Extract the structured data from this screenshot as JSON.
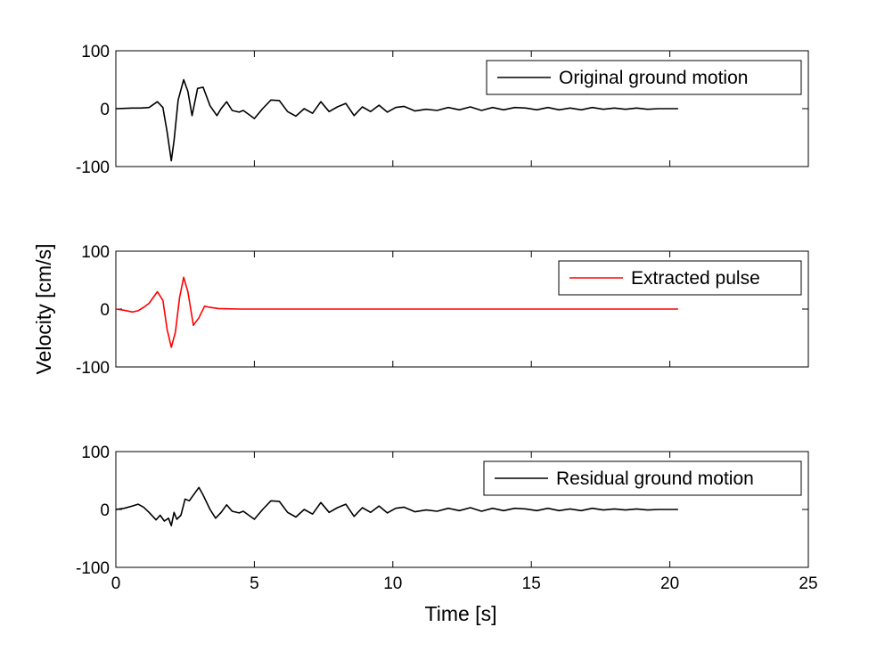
{
  "chart_data": {
    "type": "line",
    "xlabel": "Time [s]",
    "ylabel": "Velocity [cm/s]",
    "xlim": [
      0,
      25
    ],
    "xticks": [
      0,
      5,
      10,
      15,
      20,
      25
    ],
    "grid": false,
    "panels": [
      {
        "ylim": [
          -100,
          100
        ],
        "yticks": [
          -100,
          0,
          100
        ],
        "legend_position": "top-right",
        "series": [
          {
            "name": "Original ground motion",
            "color": "#000000",
            "points": [
              [
                0,
                0
              ],
              [
                0.3,
                0.5
              ],
              [
                0.6,
                1
              ],
              [
                0.9,
                1
              ],
              [
                1.2,
                2
              ],
              [
                1.5,
                12
              ],
              [
                1.7,
                2
              ],
              [
                1.85,
                -40
              ],
              [
                2.0,
                -90
              ],
              [
                2.1,
                -55
              ],
              [
                2.25,
                15
              ],
              [
                2.45,
                50
              ],
              [
                2.6,
                30
              ],
              [
                2.75,
                -12
              ],
              [
                2.95,
                35
              ],
              [
                3.15,
                37
              ],
              [
                3.4,
                5
              ],
              [
                3.65,
                -12
              ],
              [
                3.8,
                0
              ],
              [
                4.0,
                12
              ],
              [
                4.2,
                -3
              ],
              [
                4.45,
                -6
              ],
              [
                4.6,
                -3
              ],
              [
                4.8,
                -10
              ],
              [
                5.0,
                -17
              ],
              [
                5.3,
                0
              ],
              [
                5.6,
                15
              ],
              [
                5.9,
                14
              ],
              [
                6.2,
                -5
              ],
              [
                6.5,
                -13
              ],
              [
                6.8,
                0
              ],
              [
                7.1,
                -8
              ],
              [
                7.4,
                12
              ],
              [
                7.7,
                -5
              ],
              [
                8.0,
                3
              ],
              [
                8.3,
                9
              ],
              [
                8.6,
                -12
              ],
              [
                8.9,
                3
              ],
              [
                9.2,
                -5
              ],
              [
                9.5,
                6
              ],
              [
                9.8,
                -6
              ],
              [
                10.1,
                2
              ],
              [
                10.4,
                4
              ],
              [
                10.8,
                -4
              ],
              [
                11.2,
                -1
              ],
              [
                11.6,
                -3
              ],
              [
                12.0,
                2
              ],
              [
                12.4,
                -2
              ],
              [
                12.8,
                3
              ],
              [
                13.2,
                -3
              ],
              [
                13.6,
                2
              ],
              [
                14.0,
                -2
              ],
              [
                14.4,
                2
              ],
              [
                14.8,
                1
              ],
              [
                15.2,
                -2
              ],
              [
                15.6,
                2
              ],
              [
                16.0,
                -2
              ],
              [
                16.4,
                1
              ],
              [
                16.8,
                -2
              ],
              [
                17.2,
                2
              ],
              [
                17.6,
                -1
              ],
              [
                18.0,
                1
              ],
              [
                18.4,
                -1
              ],
              [
                18.8,
                1
              ],
              [
                19.2,
                -1
              ],
              [
                19.6,
                0
              ],
              [
                20.3,
                0
              ]
            ]
          }
        ]
      },
      {
        "ylim": [
          -100,
          100
        ],
        "yticks": [
          -100,
          0,
          100
        ],
        "legend_position": "top-right",
        "series": [
          {
            "name": "Extracted pulse",
            "color": "#ff0000",
            "points": [
              [
                0,
                0
              ],
              [
                0.3,
                -2
              ],
              [
                0.6,
                -5
              ],
              [
                0.8,
                -3
              ],
              [
                1.0,
                3
              ],
              [
                1.2,
                10
              ],
              [
                1.5,
                30
              ],
              [
                1.7,
                15
              ],
              [
                1.85,
                -35
              ],
              [
                2.0,
                -66
              ],
              [
                2.15,
                -40
              ],
              [
                2.3,
                20
              ],
              [
                2.45,
                55
              ],
              [
                2.6,
                30
              ],
              [
                2.8,
                -28
              ],
              [
                3.0,
                -15
              ],
              [
                3.2,
                5
              ],
              [
                3.4,
                3
              ],
              [
                3.7,
                1
              ],
              [
                4.0,
                0.5
              ],
              [
                4.5,
                0
              ],
              [
                5.0,
                0
              ],
              [
                10.0,
                0
              ],
              [
                15.0,
                0
              ],
              [
                20.3,
                0
              ]
            ]
          }
        ]
      },
      {
        "ylim": [
          -100,
          100
        ],
        "yticks": [
          -100,
          0,
          100
        ],
        "legend_position": "top-right",
        "series": [
          {
            "name": "Residual ground motion",
            "color": "#000000",
            "points": [
              [
                0,
                0
              ],
              [
                0.3,
                2
              ],
              [
                0.6,
                6
              ],
              [
                0.8,
                9
              ],
              [
                1.0,
                4
              ],
              [
                1.2,
                -5
              ],
              [
                1.45,
                -18
              ],
              [
                1.6,
                -10
              ],
              [
                1.75,
                -20
              ],
              [
                1.9,
                -15
              ],
              [
                2.0,
                -28
              ],
              [
                2.1,
                -5
              ],
              [
                2.2,
                -17
              ],
              [
                2.35,
                -10
              ],
              [
                2.5,
                18
              ],
              [
                2.65,
                15
              ],
              [
                2.8,
                25
              ],
              [
                3.0,
                38
              ],
              [
                3.15,
                25
              ],
              [
                3.4,
                0
              ],
              [
                3.6,
                -15
              ],
              [
                3.8,
                -5
              ],
              [
                4.0,
                8
              ],
              [
                4.2,
                -3
              ],
              [
                4.45,
                -6
              ],
              [
                4.6,
                -3
              ],
              [
                4.8,
                -10
              ],
              [
                5.0,
                -17
              ],
              [
                5.3,
                0
              ],
              [
                5.6,
                15
              ],
              [
                5.9,
                14
              ],
              [
                6.2,
                -5
              ],
              [
                6.5,
                -13
              ],
              [
                6.8,
                0
              ],
              [
                7.1,
                -8
              ],
              [
                7.4,
                12
              ],
              [
                7.7,
                -5
              ],
              [
                8.0,
                3
              ],
              [
                8.3,
                9
              ],
              [
                8.6,
                -12
              ],
              [
                8.9,
                3
              ],
              [
                9.2,
                -5
              ],
              [
                9.5,
                6
              ],
              [
                9.8,
                -6
              ],
              [
                10.1,
                2
              ],
              [
                10.4,
                4
              ],
              [
                10.8,
                -4
              ],
              [
                11.2,
                -1
              ],
              [
                11.6,
                -3
              ],
              [
                12.0,
                2
              ],
              [
                12.4,
                -2
              ],
              [
                12.8,
                3
              ],
              [
                13.2,
                -3
              ],
              [
                13.6,
                2
              ],
              [
                14.0,
                -2
              ],
              [
                14.4,
                2
              ],
              [
                14.8,
                1
              ],
              [
                15.2,
                -2
              ],
              [
                15.6,
                2
              ],
              [
                16.0,
                -2
              ],
              [
                16.4,
                1
              ],
              [
                16.8,
                -2
              ],
              [
                17.2,
                2
              ],
              [
                17.6,
                -1
              ],
              [
                18.0,
                1
              ],
              [
                18.4,
                -1
              ],
              [
                18.8,
                1
              ],
              [
                19.2,
                -1
              ],
              [
                19.6,
                0
              ],
              [
                20.3,
                0
              ]
            ]
          }
        ]
      }
    ]
  }
}
